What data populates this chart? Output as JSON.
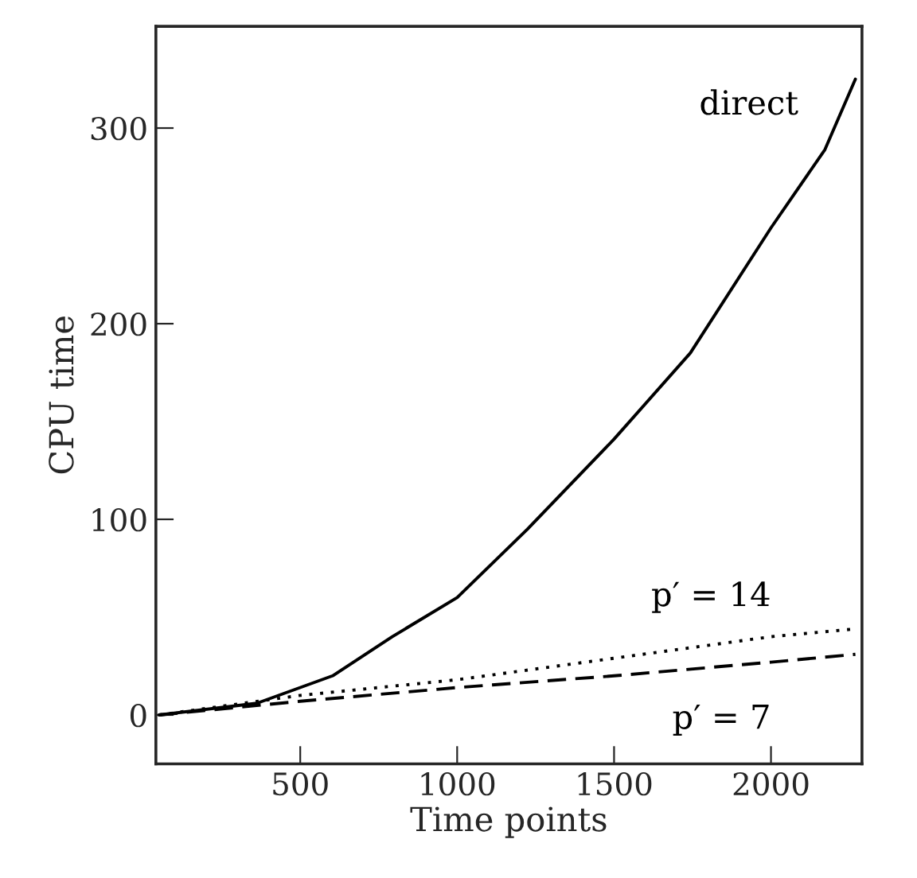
{
  "chart_data": {
    "type": "line",
    "xlabel": "Time points",
    "ylabel": "CPU time",
    "xlim": [
      40,
      2290
    ],
    "ylim": [
      -25,
      352
    ],
    "xticks": [
      500,
      1000,
      1500,
      2000
    ],
    "yticks": [
      0,
      100,
      200,
      300
    ],
    "grid": false,
    "legend": false,
    "series": [
      {
        "name": "direct",
        "color": "#000000",
        "line_style": "solid",
        "x": [
          50,
          362,
          603,
          793,
          1000,
          1224,
          1500,
          1743,
          2000,
          2172,
          2269
        ],
        "values": [
          0,
          6,
          20,
          40,
          60,
          95,
          141,
          185,
          249,
          289,
          325
        ]
      },
      {
        "name": "p′ = 14",
        "color": "#000000",
        "line_style": "dotted",
        "x": [
          50,
          500,
          1000,
          1500,
          2000,
          2269
        ],
        "values": [
          0,
          10,
          18,
          29,
          40,
          44
        ]
      },
      {
        "name": "p′ = 7",
        "color": "#000000",
        "line_style": "dashed",
        "x": [
          50,
          500,
          1000,
          1500,
          2000,
          2269
        ],
        "values": [
          0,
          7,
          14,
          20,
          27,
          31
        ]
      }
    ]
  }
}
